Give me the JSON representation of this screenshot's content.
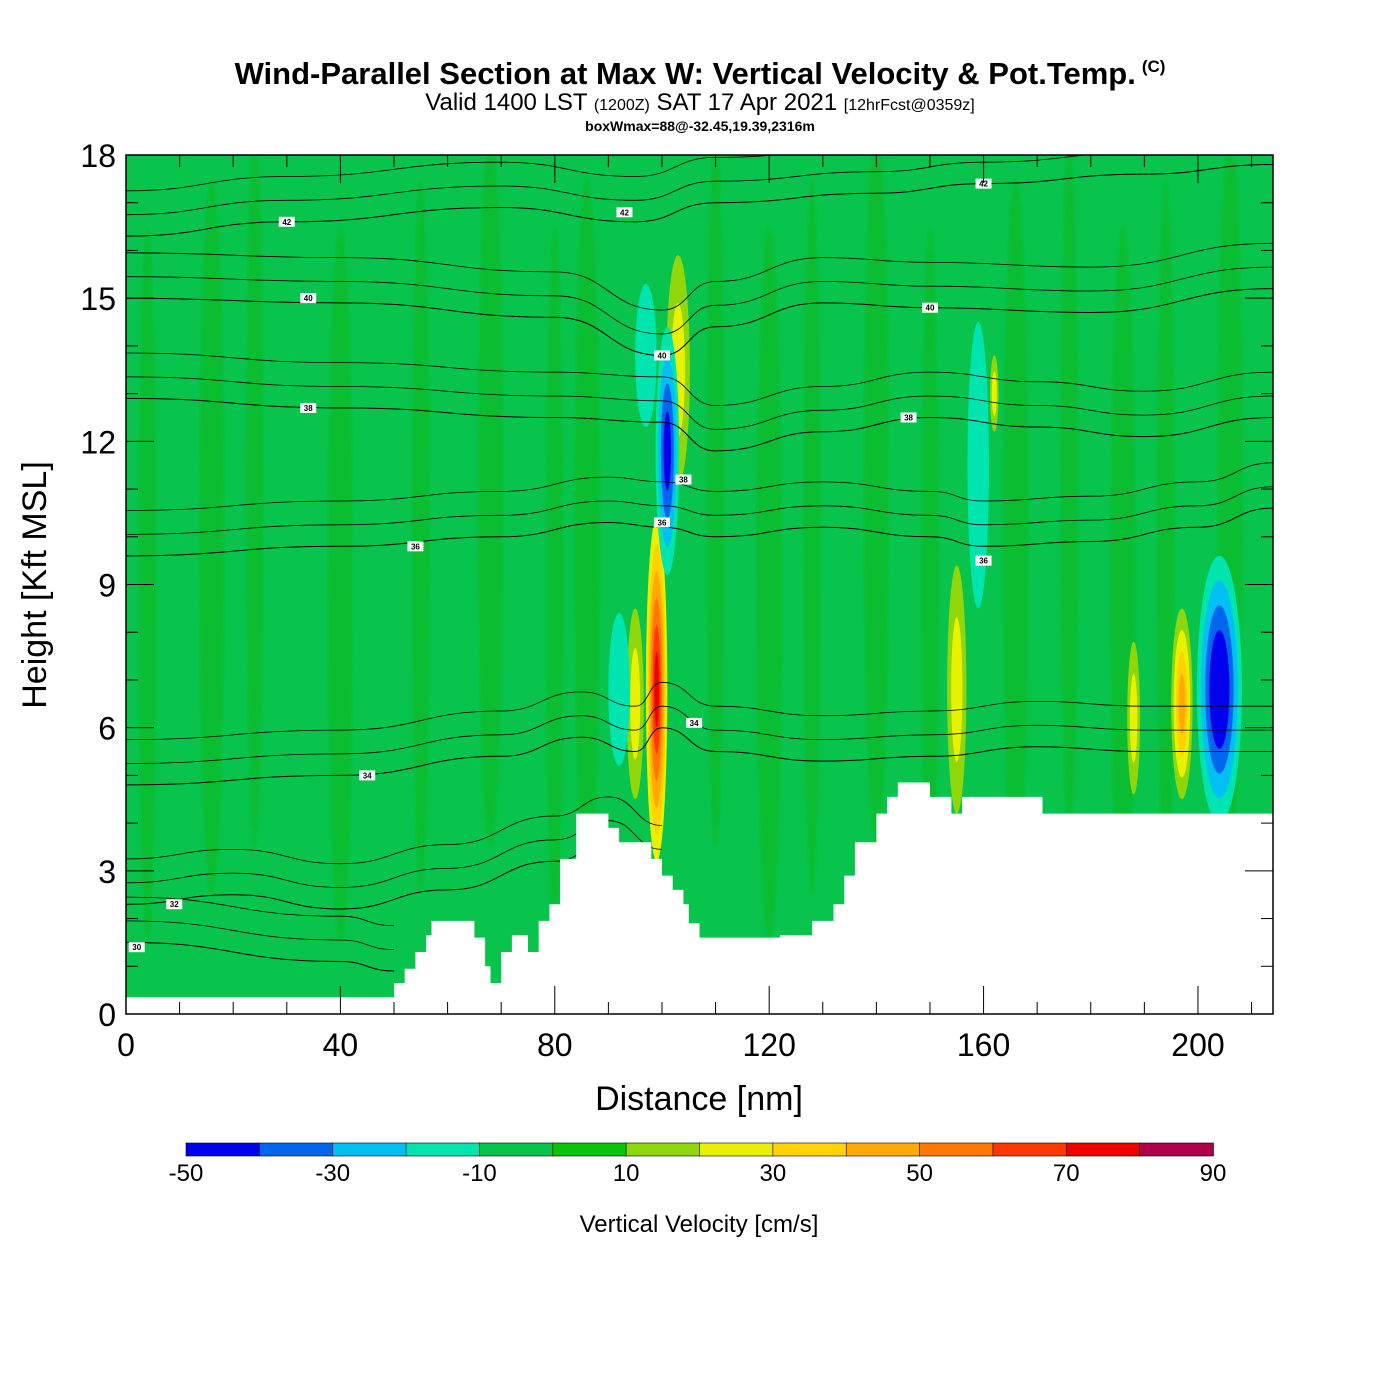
{
  "title": {
    "main": "Wind-Parallel Section at Max W: Vertical Velocity & Pot.Temp.",
    "copyright": "(C)",
    "valid_prefix": "Valid 1400 LST",
    "valid_utc": "(1200Z)",
    "valid_date": "SAT 17 Apr 2021",
    "forecast": "[12hrFcst@0359z]",
    "boxwmax": "boxWmax=88@-32.45,19.39,2316m"
  },
  "chart_data": {
    "type": "heatmap",
    "xlabel": "Distance [nm]",
    "ylabel": "Height [Kft MSL]",
    "xlim": [
      0,
      214
    ],
    "ylim": [
      0,
      18
    ],
    "x_ticks": [
      0,
      40,
      80,
      120,
      160,
      200
    ],
    "x_tick_labels": [
      "0",
      "40",
      "80",
      "120",
      "160",
      "200"
    ],
    "y_ticks": [
      0,
      3,
      6,
      9,
      12,
      15,
      18
    ],
    "y_tick_labels": [
      "0",
      "3",
      "6",
      "9",
      "12",
      "15",
      "18"
    ],
    "background_level_color": "#08c44c",
    "terrain": [
      [
        0,
        0.35
      ],
      [
        50,
        0.35
      ],
      [
        50,
        0.65
      ],
      [
        52,
        0.65
      ],
      [
        52,
        0.95
      ],
      [
        54,
        0.95
      ],
      [
        54,
        1.3
      ],
      [
        56,
        1.3
      ],
      [
        56,
        1.65
      ],
      [
        57,
        1.65
      ],
      [
        57,
        1.95
      ],
      [
        65,
        1.95
      ],
      [
        65,
        1.6
      ],
      [
        67,
        1.6
      ],
      [
        67,
        1.0
      ],
      [
        68,
        1.0
      ],
      [
        68,
        0.65
      ],
      [
        70,
        0.65
      ],
      [
        70,
        1.3
      ],
      [
        72,
        1.3
      ],
      [
        72,
        1.65
      ],
      [
        75,
        1.65
      ],
      [
        75,
        1.3
      ],
      [
        77,
        1.3
      ],
      [
        77,
        1.95
      ],
      [
        79,
        1.95
      ],
      [
        79,
        2.3
      ],
      [
        81,
        2.3
      ],
      [
        81,
        3.25
      ],
      [
        84,
        3.25
      ],
      [
        84,
        4.2
      ],
      [
        90,
        4.2
      ],
      [
        90,
        3.9
      ],
      [
        92,
        3.9
      ],
      [
        92,
        3.6
      ],
      [
        98,
        3.6
      ],
      [
        98,
        3.25
      ],
      [
        100,
        3.25
      ],
      [
        100,
        2.9
      ],
      [
        102,
        2.9
      ],
      [
        102,
        2.6
      ],
      [
        104,
        2.6
      ],
      [
        104,
        2.3
      ],
      [
        105,
        2.3
      ],
      [
        105,
        1.9
      ],
      [
        107,
        1.9
      ],
      [
        107,
        1.6
      ],
      [
        122,
        1.6
      ],
      [
        122,
        1.65
      ],
      [
        128,
        1.65
      ],
      [
        128,
        1.95
      ],
      [
        132,
        1.95
      ],
      [
        132,
        2.3
      ],
      [
        134,
        2.3
      ],
      [
        134,
        2.9
      ],
      [
        136,
        2.9
      ],
      [
        136,
        3.6
      ],
      [
        140,
        3.6
      ],
      [
        140,
        4.2
      ],
      [
        142,
        4.2
      ],
      [
        142,
        4.55
      ],
      [
        144,
        4.55
      ],
      [
        144,
        4.85
      ],
      [
        150,
        4.85
      ],
      [
        150,
        4.55
      ],
      [
        154,
        4.55
      ],
      [
        154,
        4.2
      ],
      [
        156,
        4.2
      ],
      [
        156,
        4.55
      ],
      [
        171,
        4.55
      ],
      [
        171,
        4.2
      ],
      [
        214,
        4.2
      ]
    ],
    "w_features": [
      {
        "x": 99,
        "y": 6.8,
        "rx": 2.0,
        "ry": 3.6,
        "levels": [
          20,
          30,
          40,
          50,
          60,
          70
        ]
      },
      {
        "x": 95,
        "y": 6.5,
        "rx": 1.6,
        "ry": 2.0,
        "levels": [
          10,
          20
        ]
      },
      {
        "x": 103,
        "y": 13.5,
        "rx": 2.2,
        "ry": 2.4,
        "levels": [
          10,
          20
        ]
      },
      {
        "x": 101,
        "y": 11.8,
        "rx": 2.2,
        "ry": 2.6,
        "levels": [
          -10,
          -20,
          -30,
          -40
        ]
      },
      {
        "x": 97,
        "y": 13.8,
        "rx": 2.0,
        "ry": 1.5,
        "levels": [
          -10
        ]
      },
      {
        "x": 92,
        "y": 6.8,
        "rx": 2.0,
        "ry": 1.6,
        "levels": [
          -10
        ]
      },
      {
        "x": 155,
        "y": 6.8,
        "rx": 1.8,
        "ry": 2.6,
        "levels": [
          10,
          20
        ]
      },
      {
        "x": 159,
        "y": 11.5,
        "rx": 2.0,
        "ry": 3.0,
        "levels": [
          -10
        ]
      },
      {
        "x": 162,
        "y": 13.0,
        "rx": 0.8,
        "ry": 0.8,
        "levels": [
          10,
          20
        ]
      },
      {
        "x": 188,
        "y": 6.2,
        "rx": 1.2,
        "ry": 1.6,
        "levels": [
          10,
          20
        ]
      },
      {
        "x": 197,
        "y": 6.5,
        "rx": 2.0,
        "ry": 2.0,
        "levels": [
          10,
          20,
          30,
          40
        ]
      },
      {
        "x": 204,
        "y": 6.8,
        "rx": 4.2,
        "ry": 2.8,
        "levels": [
          -10,
          -20,
          -30,
          -40,
          -50
        ]
      }
    ],
    "theta_contours": [
      {
        "label": "30",
        "points": [
          [
            0,
            1.5
          ],
          [
            40,
            1.1
          ],
          [
            50,
            0.9
          ]
        ],
        "label_at": [
          2,
          1.4
        ]
      },
      {
        "label": "32",
        "points": [
          [
            0,
            2.3
          ],
          [
            20,
            2.5
          ],
          [
            40,
            2.2
          ],
          [
            60,
            2.6
          ],
          [
            80,
            3.2
          ],
          [
            90,
            3.6
          ],
          [
            100,
            3.0
          ]
        ],
        "label_at": [
          9,
          2.3
        ]
      },
      {
        "label": "34",
        "points": [
          [
            0,
            4.8
          ],
          [
            40,
            5.0
          ],
          [
            70,
            5.4
          ],
          [
            85,
            5.8
          ],
          [
            95,
            5.5
          ],
          [
            100,
            6.0
          ],
          [
            110,
            5.5
          ],
          [
            130,
            5.3
          ],
          [
            150,
            5.4
          ],
          [
            170,
            5.6
          ],
          [
            190,
            5.5
          ],
          [
            214,
            5.5
          ]
        ],
        "label_at": [
          45,
          5.0
        ]
      },
      {
        "label": "36",
        "points": [
          [
            0,
            9.6
          ],
          [
            40,
            9.8
          ],
          [
            70,
            10.0
          ],
          [
            90,
            10.3
          ],
          [
            100,
            10.2
          ],
          [
            110,
            10.0
          ],
          [
            130,
            10.2
          ],
          [
            150,
            10.0
          ],
          [
            160,
            9.8
          ],
          [
            180,
            9.9
          ],
          [
            200,
            10.2
          ],
          [
            214,
            10.6
          ]
        ],
        "label_at": [
          54,
          9.8
        ]
      },
      {
        "label": "38",
        "points": [
          [
            0,
            12.9
          ],
          [
            40,
            12.7
          ],
          [
            80,
            12.5
          ],
          [
            100,
            12.4
          ],
          [
            110,
            11.8
          ],
          [
            130,
            12.2
          ],
          [
            150,
            12.5
          ],
          [
            170,
            12.3
          ],
          [
            190,
            12.1
          ],
          [
            214,
            12.5
          ]
        ],
        "label_at": [
          34,
          12.7
        ]
      },
      {
        "label": "40",
        "points": [
          [
            0,
            15.0
          ],
          [
            40,
            14.9
          ],
          [
            80,
            14.6
          ],
          [
            100,
            13.8
          ],
          [
            110,
            14.4
          ],
          [
            130,
            14.9
          ],
          [
            150,
            14.8
          ],
          [
            180,
            14.7
          ],
          [
            214,
            15.2
          ]
        ],
        "label_at": [
          34,
          15.0
        ]
      },
      {
        "label": "42",
        "points": [
          [
            0,
            16.3
          ],
          [
            30,
            16.6
          ],
          [
            70,
            16.9
          ],
          [
            95,
            16.6
          ],
          [
            110,
            17.0
          ],
          [
            140,
            17.2
          ],
          [
            160,
            17.4
          ],
          [
            190,
            17.6
          ],
          [
            214,
            17.8
          ]
        ],
        "label_at": [
          30,
          16.6
        ]
      }
    ],
    "theta_extra_labels": [
      {
        "label": "42",
        "x": 93,
        "y": 16.8
      },
      {
        "label": "42",
        "x": 160,
        "y": 17.4
      },
      {
        "label": "40",
        "x": 100,
        "y": 13.8
      },
      {
        "label": "40",
        "x": 150,
        "y": 14.8
      },
      {
        "label": "38",
        "x": 146,
        "y": 12.5
      },
      {
        "label": "38",
        "x": 104,
        "y": 11.2
      },
      {
        "label": "36",
        "x": 100,
        "y": 10.3
      },
      {
        "label": "36",
        "x": 160,
        "y": 9.5
      },
      {
        "label": "34",
        "x": 106,
        "y": 6.1
      }
    ],
    "colorbar": {
      "label": "Vertical Velocity [cm/s]",
      "bounds": [
        -50,
        -40,
        -30,
        -20,
        -10,
        0,
        10,
        20,
        30,
        40,
        50,
        60,
        70,
        80,
        90
      ],
      "colors": [
        "#0000ee",
        "#0066ee",
        "#00bff2",
        "#00e4b0",
        "#08c44c",
        "#0ac40c",
        "#8fd60a",
        "#e8f200",
        "#ffd200",
        "#ffaa00",
        "#ff7800",
        "#ff3800",
        "#ee0000",
        "#b00048"
      ],
      "tick_labels": [
        "-50",
        "-30",
        "-10",
        "10",
        "30",
        "50",
        "70",
        "90"
      ]
    }
  }
}
